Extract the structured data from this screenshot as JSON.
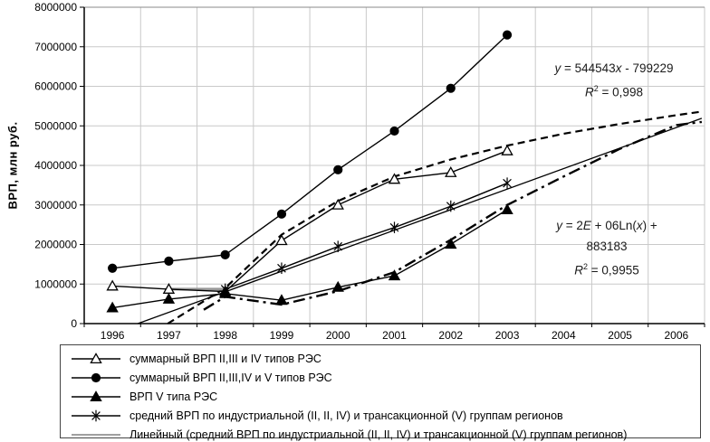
{
  "chart_data": {
    "type": "line",
    "title": "",
    "xlabel": "",
    "ylabel": "ВРП, млн руб.",
    "ylim": [
      0,
      8000000
    ],
    "y_tick_step": 1000000,
    "y_tick_labels": [
      "0",
      "1000000",
      "2000000",
      "3000000",
      "4000000",
      "5000000",
      "6000000",
      "7000000",
      "8000000"
    ],
    "categories": [
      "1996",
      "1997",
      "1998",
      "1999",
      "2000",
      "2001",
      "2002",
      "2003",
      "2004",
      "2005",
      "2006"
    ],
    "grid": true,
    "colors": {
      "series": "#000000",
      "gridline": "#c9c9c9",
      "axis": "#000000",
      "gray_line": "#999999"
    },
    "series": [
      {
        "name": "суммарный ВРП II,III и IV типов РЭС",
        "marker": "triangle-open",
        "line": "solid",
        "values": [
          950000,
          870000,
          810000,
          2100000,
          3000000,
          3650000,
          3820000,
          4370000,
          null,
          null,
          null
        ]
      },
      {
        "name": "суммарный ВРП II,III,IV и V типов РЭС",
        "marker": "circle-filled",
        "line": "solid",
        "values": [
          1400000,
          1580000,
          1740000,
          2770000,
          3890000,
          4870000,
          5950000,
          7300000,
          null,
          null,
          null
        ]
      },
      {
        "name": "ВРП V типа РЭС",
        "marker": "triangle-filled",
        "line": "solid",
        "values": [
          400000,
          620000,
          760000,
          590000,
          920000,
          1210000,
          2010000,
          2880000,
          null,
          null,
          null
        ]
      },
      {
        "name": "средний ВРП по индустриальной (II, II, IV) и трансакционной (V) группам регионов",
        "marker": "asterisk",
        "line": "solid",
        "values": [
          null,
          null,
          870000,
          1400000,
          1950000,
          2430000,
          2970000,
          3550000,
          null,
          null,
          null
        ]
      }
    ],
    "overlays": [
      {
        "id": "linear-trendline",
        "style": "solid",
        "color": "#000000",
        "width": 1.3,
        "points": [
          [
            0.45,
            0
          ],
          [
            10.45,
            5190000
          ]
        ]
      },
      {
        "id": "log-trendline-dashed",
        "style": "dashed",
        "color": "#000000",
        "width": 2.2,
        "points": [
          [
            0.98,
            0
          ],
          [
            2,
            900000
          ],
          [
            3,
            2250000
          ],
          [
            4,
            3100000
          ],
          [
            5,
            3720000
          ],
          [
            6,
            4150000
          ],
          [
            7,
            4500000
          ],
          [
            8,
            4800000
          ],
          [
            9,
            5050000
          ],
          [
            10,
            5270000
          ],
          [
            10.45,
            5360000
          ]
        ]
      },
      {
        "id": "dash-dot-trendline",
        "style": "dashdot",
        "color": "#000000",
        "width": 2.4,
        "points": [
          [
            1.62,
            350000
          ],
          [
            2,
            680000
          ],
          [
            3,
            480000
          ],
          [
            4,
            820000
          ],
          [
            5,
            1300000
          ],
          [
            6,
            2120000
          ],
          [
            7,
            3000000
          ],
          [
            8,
            3720000
          ],
          [
            9,
            4420000
          ],
          [
            10,
            5020000
          ],
          [
            10.45,
            5100000
          ]
        ]
      },
      {
        "id": "gray-average-segment",
        "style": "solid",
        "color": "#999999",
        "width": 3,
        "points": [
          [
            1,
            870000
          ],
          [
            2,
            870000
          ]
        ]
      }
    ],
    "legend": {
      "position": "bottom",
      "items": [
        {
          "marker": "triangle-open",
          "color": "#000000",
          "label": "суммарный ВРП II,III и IV типов РЭС"
        },
        {
          "marker": "circle-filled",
          "color": "#000000",
          "label": "суммарный ВРП II,III,IV и V типов РЭС"
        },
        {
          "marker": "triangle-filled",
          "color": "#000000",
          "label": "ВРП V типа РЭС"
        },
        {
          "marker": "asterisk",
          "color": "#000000",
          "label": "средний ВРП по индустриальной (II, II, IV) и трансакционной (V) группам регионов"
        },
        {
          "marker": "none",
          "color": "#808080",
          "label": "Линейный (средний ВРП по индустриальной (II, II, IV) и трансакционной (V) группам регионов)"
        }
      ]
    },
    "annotations": [
      {
        "id": "linear-equation",
        "x": 678,
        "y": 64,
        "lines": [
          [
            {
              "t": "y",
              "i": true
            },
            {
              "t": " = 544543"
            },
            {
              "t": "x",
              "i": true
            },
            {
              "t": " - 799229"
            }
          ],
          [
            {
              "t": "R",
              "i": true
            },
            {
              "t": "2",
              "sup": true
            },
            {
              "t": " = 0,998"
            }
          ]
        ]
      },
      {
        "id": "log-equation",
        "x": 670,
        "y": 238,
        "lines": [
          [
            {
              "t": "y",
              "i": true
            },
            {
              "t": " = 2"
            },
            {
              "t": "E",
              "i": true
            },
            {
              "t": " + 06Ln("
            },
            {
              "t": "x",
              "i": true
            },
            {
              "t": ") +"
            }
          ],
          [
            {
              "t": "883183"
            }
          ],
          [
            {
              "t": "R",
              "i": true
            },
            {
              "t": "2",
              "sup": true
            },
            {
              "t": " = 0,9955"
            }
          ]
        ]
      }
    ]
  }
}
